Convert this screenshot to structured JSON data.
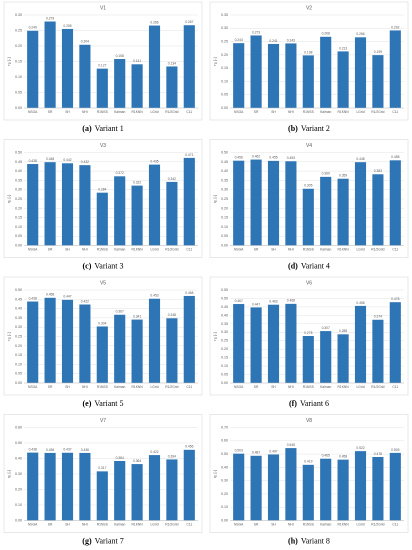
{
  "chart_data": [
    {
      "type": "bar",
      "title": "V1",
      "ylabel": "η₁ [-]",
      "caption_label": "(a)",
      "caption": "Variant 1",
      "color": "#2e75b6",
      "categories": [
        "NSGA",
        "SR",
        "SH",
        "NHI",
        "R1NSS",
        "Kalman",
        "R1KNN",
        "LGrid",
        "R1/2Grid",
        "C11"
      ],
      "values": [
        0.249,
        0.279,
        0.255,
        0.204,
        0.127,
        0.158,
        0.141,
        0.266,
        0.134,
        0.267
      ],
      "ylim": [
        0,
        0.3
      ],
      "yticks": [
        {
          "value": 0,
          "label": "0.00"
        },
        {
          "value": 0.05,
          "label": "0.05"
        },
        {
          "value": 0.1,
          "label": "0.10"
        },
        {
          "value": 0.15,
          "label": "0.15"
        },
        {
          "value": 0.2,
          "label": "0.20"
        },
        {
          "value": 0.25,
          "label": "0.25"
        },
        {
          "value": 0.3,
          "label": "0.30"
        }
      ]
    },
    {
      "type": "bar",
      "title": "V2",
      "ylabel": "η₁ [-]",
      "caption_label": "(b)",
      "caption": "Variant 2",
      "color": "#2e75b6",
      "categories": [
        "NSGA",
        "SR",
        "SH",
        "NHI",
        "R1NSS",
        "Kalman",
        "R1KNN",
        "LGrid",
        "R1/2Grid",
        "C11"
      ],
      "values": [
        0.244,
        0.273,
        0.241,
        0.243,
        0.198,
        0.268,
        0.213,
        0.266,
        0.199,
        0.292
      ],
      "ylim": [
        0,
        0.35
      ],
      "yticks": [
        {
          "value": 0,
          "label": "0.00"
        },
        {
          "value": 0.05,
          "label": "0.05"
        },
        {
          "value": 0.1,
          "label": "0.10"
        },
        {
          "value": 0.15,
          "label": "0.15"
        },
        {
          "value": 0.2,
          "label": "0.20"
        },
        {
          "value": 0.25,
          "label": "0.25"
        },
        {
          "value": 0.3,
          "label": "0.30"
        },
        {
          "value": 0.35,
          "label": "0.35"
        }
      ]
    },
    {
      "type": "bar",
      "title": "V3",
      "ylabel": "η₁ [-]",
      "caption_label": "(c)",
      "caption": "Variant 3",
      "color": "#2e75b6",
      "categories": [
        "NSGA",
        "SR",
        "SH",
        "NHI",
        "R1NSS",
        "Kalman",
        "R1KNN",
        "LGrid",
        "R1/2Grid",
        "C11"
      ],
      "values": [
        0.438,
        0.448,
        0.442,
        0.432,
        0.284,
        0.372,
        0.322,
        0.435,
        0.342,
        0.471
      ],
      "ylim": [
        0,
        0.5
      ],
      "yticks": [
        {
          "value": 0,
          "label": "0.00"
        },
        {
          "value": 0.05,
          "label": "0.05"
        },
        {
          "value": 0.1,
          "label": "0.10"
        },
        {
          "value": 0.15,
          "label": "0.15"
        },
        {
          "value": 0.2,
          "label": "0.20"
        },
        {
          "value": 0.25,
          "label": "0.25"
        },
        {
          "value": 0.3,
          "label": "0.30"
        },
        {
          "value": 0.35,
          "label": "0.35"
        },
        {
          "value": 0.4,
          "label": "0.40"
        },
        {
          "value": 0.45,
          "label": "0.45"
        },
        {
          "value": 0.5,
          "label": "0.50"
        }
      ]
    },
    {
      "type": "bar",
      "title": "V4",
      "ylabel": "η₁ [-]",
      "caption_label": "(d)",
      "caption": "Variant 4",
      "color": "#2e75b6",
      "categories": [
        "NSGA",
        "SR",
        "SH",
        "NHI",
        "R1NSS",
        "Kalman",
        "R1KNN",
        "LGrid",
        "R1/2Grid",
        "C11"
      ],
      "values": [
        0.456,
        0.462,
        0.455,
        0.453,
        0.305,
        0.369,
        0.359,
        0.448,
        0.383,
        0.458
      ],
      "ylim": [
        0,
        0.5
      ],
      "yticks": [
        {
          "value": 0,
          "label": "0.00"
        },
        {
          "value": 0.05,
          "label": "0.05"
        },
        {
          "value": 0.1,
          "label": "0.10"
        },
        {
          "value": 0.15,
          "label": "0.15"
        },
        {
          "value": 0.2,
          "label": "0.20"
        },
        {
          "value": 0.25,
          "label": "0.25"
        },
        {
          "value": 0.3,
          "label": "0.30"
        },
        {
          "value": 0.35,
          "label": "0.35"
        },
        {
          "value": 0.4,
          "label": "0.40"
        },
        {
          "value": 0.45,
          "label": "0.45"
        },
        {
          "value": 0.5,
          "label": "0.50"
        }
      ]
    },
    {
      "type": "bar",
      "title": "V5",
      "ylabel": "η₁ [-]",
      "caption_label": "(e)",
      "caption": "Variant 5",
      "color": "#2e75b6",
      "categories": [
        "NSGA",
        "SR",
        "SH",
        "NHI",
        "R1NSS",
        "Kalman",
        "R1KNN",
        "LGrid",
        "R1/2Grid",
        "C11"
      ],
      "values": [
        0.438,
        0.458,
        0.447,
        0.422,
        0.304,
        0.367,
        0.341,
        0.453,
        0.348,
        0.468
      ],
      "ylim": [
        0,
        0.5
      ],
      "yticks": [
        {
          "value": 0,
          "label": "0.00"
        },
        {
          "value": 0.05,
          "label": "0.05"
        },
        {
          "value": 0.1,
          "label": "0.10"
        },
        {
          "value": 0.15,
          "label": "0.15"
        },
        {
          "value": 0.2,
          "label": "0.20"
        },
        {
          "value": 0.25,
          "label": "0.25"
        },
        {
          "value": 0.3,
          "label": "0.30"
        },
        {
          "value": 0.35,
          "label": "0.35"
        },
        {
          "value": 0.4,
          "label": "0.40"
        },
        {
          "value": 0.45,
          "label": "0.45"
        },
        {
          "value": 0.5,
          "label": "0.50"
        }
      ]
    },
    {
      "type": "bar",
      "title": "V6",
      "ylabel": "η₁ [-]",
      "caption_label": "(f)",
      "caption": "Variant 6",
      "color": "#2e75b6",
      "categories": [
        "NSGA",
        "SR",
        "SH",
        "NHI",
        "R1NSS",
        "Kalman",
        "R1KNN",
        "LGrid",
        "R1/2Grid",
        "C11"
      ],
      "values": [
        0.467,
        0.447,
        0.463,
        0.468,
        0.278,
        0.307,
        0.288,
        0.456,
        0.374,
        0.478
      ],
      "ylim": [
        0,
        0.55
      ],
      "yticks": [
        {
          "value": 0,
          "label": "0.00"
        },
        {
          "value": 0.05,
          "label": "0.05"
        },
        {
          "value": 0.1,
          "label": "0.10"
        },
        {
          "value": 0.15,
          "label": "0.15"
        },
        {
          "value": 0.2,
          "label": "0.20"
        },
        {
          "value": 0.25,
          "label": "0.25"
        },
        {
          "value": 0.3,
          "label": "0.30"
        },
        {
          "value": 0.35,
          "label": "0.35"
        },
        {
          "value": 0.4,
          "label": "0.40"
        },
        {
          "value": 0.45,
          "label": "0.45"
        },
        {
          "value": 0.5,
          "label": "0.50"
        },
        {
          "value": 0.55,
          "label": "0.55"
        }
      ]
    },
    {
      "type": "bar",
      "title": "V7",
      "ylabel": "η₁ [-]",
      "caption_label": "(g)",
      "caption": "Variant 7",
      "color": "#2e75b6",
      "categories": [
        "NSGA",
        "SR",
        "SH",
        "NHI",
        "R1NSS",
        "Kalman",
        "R1KNN",
        "LGrid",
        "R1/2Grid",
        "C11"
      ],
      "values": [
        0.438,
        0.436,
        0.437,
        0.436,
        0.317,
        0.384,
        0.364,
        0.422,
        0.394,
        0.456
      ],
      "ylim": [
        0,
        0.6
      ],
      "yticks": [
        {
          "value": 0,
          "label": "0.00"
        },
        {
          "value": 0.1,
          "label": "0.10"
        },
        {
          "value": 0.2,
          "label": "0.20"
        },
        {
          "value": 0.3,
          "label": "0.30"
        },
        {
          "value": 0.4,
          "label": "0.40"
        },
        {
          "value": 0.5,
          "label": "0.50"
        },
        {
          "value": 0.6,
          "label": "0.60"
        }
      ]
    },
    {
      "type": "bar",
      "title": "V8",
      "ylabel": "η₁ [-]",
      "caption_label": "(h)",
      "caption": "Variant 8",
      "color": "#2e75b6",
      "categories": [
        "NSGA",
        "SR",
        "SH",
        "NHI",
        "R1NSS",
        "Kalman",
        "R1KNN",
        "LGrid",
        "R1/2Grid",
        "C11"
      ],
      "values": [
        0.503,
        0.487,
        0.497,
        0.545,
        0.419,
        0.465,
        0.458,
        0.522,
        0.478,
        0.509
      ],
      "ylim": [
        0,
        0.7
      ],
      "yticks": [
        {
          "value": 0,
          "label": "0.00"
        },
        {
          "value": 0.1,
          "label": "0.10"
        },
        {
          "value": 0.2,
          "label": "0.20"
        },
        {
          "value": 0.3,
          "label": "0.30"
        },
        {
          "value": 0.4,
          "label": "0.40"
        },
        {
          "value": 0.5,
          "label": "0.50"
        },
        {
          "value": 0.6,
          "label": "0.60"
        },
        {
          "value": 0.7,
          "label": "0.70"
        }
      ]
    }
  ]
}
